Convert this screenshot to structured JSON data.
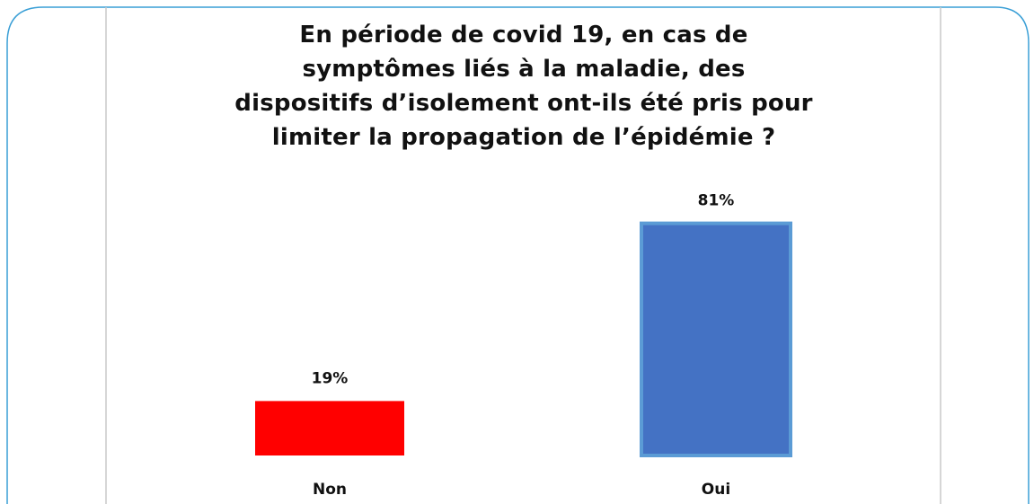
{
  "chart_data": {
    "type": "bar",
    "title": "En période de covid 19, en cas de\nsymptômes liés à la maladie, des\ndispositifs d’isolement ont-ils été pris pour\nlimiter la propagation de l’épidémie ?",
    "categories": [
      "Non",
      "Oui"
    ],
    "values": [
      19,
      81
    ],
    "value_labels": [
      "19%",
      "81%"
    ],
    "colors": [
      "#ff0000",
      "#4472c4"
    ]
  }
}
